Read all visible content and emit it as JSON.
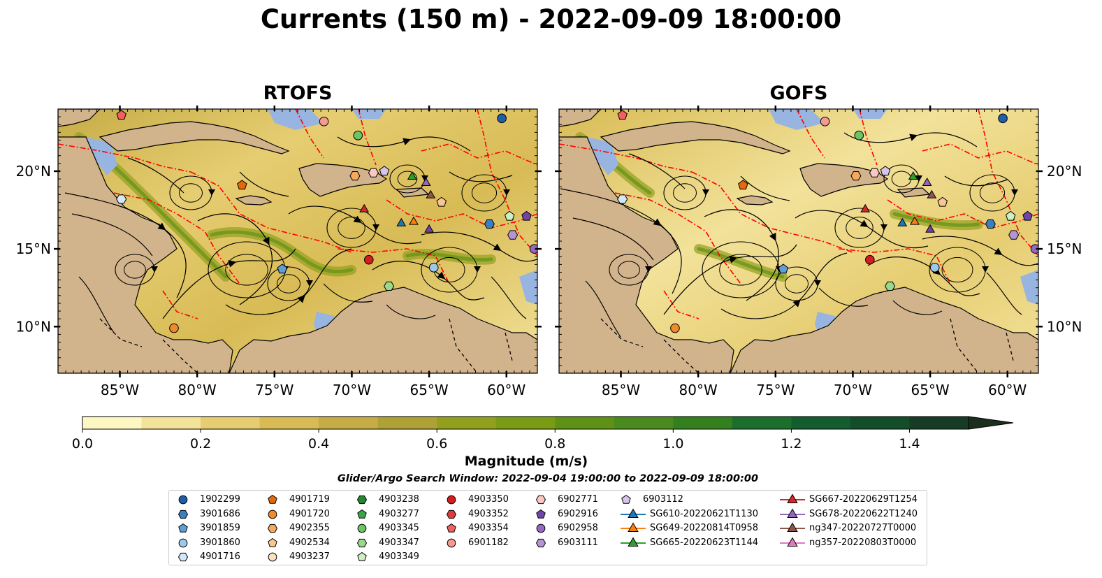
{
  "title": "Currents (150 m) - 2022-09-09 18:00:00",
  "panels": [
    {
      "title": "RTOFS"
    },
    {
      "title": "GOFS"
    }
  ],
  "x_ticks": [
    "85°W",
    "80°W",
    "75°W",
    "70°W",
    "65°W",
    "60°W"
  ],
  "y_ticks": [
    "20°N",
    "15°N",
    "10°N"
  ],
  "map_extent": {
    "lon": [
      -89,
      -58
    ],
    "lat": [
      7,
      24
    ]
  },
  "colorbar": {
    "label": "Magnitude (m/s)",
    "ticks": [
      "0.0",
      "0.2",
      "0.4",
      "0.6",
      "0.8",
      "1.0",
      "1.2",
      "1.4"
    ],
    "range": [
      0,
      1.5
    ],
    "extend": "max",
    "colors": [
      "#fdf7c3",
      "#f2e29a",
      "#e6cd72",
      "#d8bb55",
      "#c6ac45",
      "#aea236",
      "#93a01e",
      "#799c14",
      "#5f9117",
      "#4a8a1e",
      "#34801e",
      "#1c6e2c",
      "#145d2e",
      "#134d2a",
      "#173c26",
      "#1c2e1e"
    ]
  },
  "colors": {
    "land": "#d2b48c",
    "shallow": "#98b4e0",
    "eez": "#ff0000"
  },
  "search_window": "Glider/Argo Search Window: 2022-09-04 19:00:00 to 2022-09-09 18:00:00",
  "legend": [
    {
      "label": "1902299",
      "marker": "circle",
      "color": "#1f5ea8"
    },
    {
      "label": "3901686",
      "marker": "hexagon",
      "color": "#3a7fc0"
    },
    {
      "label": "3901859",
      "marker": "pentagon",
      "color": "#5f9fd6"
    },
    {
      "label": "3901860",
      "marker": "circle",
      "color": "#9cc8ea"
    },
    {
      "label": "4901716",
      "marker": "hexagon",
      "color": "#d4e8f8"
    },
    {
      "label": "4901719",
      "marker": "pentagon",
      "color": "#e4680c"
    },
    {
      "label": "4901720",
      "marker": "circle",
      "color": "#f08a2e"
    },
    {
      "label": "4902355",
      "marker": "hexagon",
      "color": "#f6a85c"
    },
    {
      "label": "4902534",
      "marker": "pentagon",
      "color": "#f8c690"
    },
    {
      "label": "4903237",
      "marker": "circle",
      "color": "#fde0c0"
    },
    {
      "label": "4903238",
      "marker": "hexagon",
      "color": "#22862e"
    },
    {
      "label": "4903277",
      "marker": "pentagon",
      "color": "#3aa548"
    },
    {
      "label": "4903345",
      "marker": "circle",
      "color": "#6cc464"
    },
    {
      "label": "4903347",
      "marker": "hexagon",
      "color": "#9ad88c"
    },
    {
      "label": "4903349",
      "marker": "pentagon",
      "color": "#d0eec4"
    },
    {
      "label": "4903350",
      "marker": "circle",
      "color": "#d21e1e"
    },
    {
      "label": "4903352",
      "marker": "hexagon",
      "color": "#e23a3a"
    },
    {
      "label": "4903354",
      "marker": "pentagon",
      "color": "#f06060"
    },
    {
      "label": "6901182",
      "marker": "circle",
      "color": "#f49a90"
    },
    {
      "label": "6902771",
      "marker": "hexagon",
      "color": "#f8c8c4"
    },
    {
      "label": "6902916",
      "marker": "pentagon",
      "color": "#7044a8"
    },
    {
      "label": "6902958",
      "marker": "circle",
      "color": "#9568c4"
    },
    {
      "label": "6903111",
      "marker": "hexagon",
      "color": "#b594d4"
    },
    {
      "label": "6903112",
      "marker": "pentagon",
      "color": "#d6c4ea"
    },
    {
      "label": "SG610-20220621T1130",
      "marker": "triangle",
      "color": "#1f77b4"
    },
    {
      "label": "SG649-20220814T0958",
      "marker": "triangle",
      "color": "#ff7f0e"
    },
    {
      "label": "SG665-20220623T1144",
      "marker": "triangle",
      "color": "#2ca02c"
    },
    {
      "label": "SG667-20220629T1254",
      "marker": "triangle",
      "color": "#d62728"
    },
    {
      "label": "SG678-20220622T1240",
      "marker": "triangle",
      "color": "#9467bd"
    },
    {
      "label": "ng347-20220727T0000",
      "marker": "triangle",
      "color": "#8c564b"
    },
    {
      "label": "ng357-20220803T0000",
      "marker": "triangle",
      "color": "#e377c2"
    }
  ],
  "floats": [
    {
      "marker": "circle",
      "color": "#1f5ea8",
      "lon": -60.3,
      "lat": 23.4
    },
    {
      "marker": "circle",
      "color": "#f49a90",
      "lon": -71.8,
      "lat": 23.2
    },
    {
      "marker": "circle",
      "color": "#6cc464",
      "lon": -69.6,
      "lat": 22.3
    },
    {
      "marker": "pentagon",
      "color": "#f06060",
      "lon": -84.9,
      "lat": 23.6
    },
    {
      "marker": "pentagon",
      "color": "#e4680c",
      "lon": -77.1,
      "lat": 19.1
    },
    {
      "marker": "hexagon",
      "color": "#d4e8f8",
      "lon": -84.9,
      "lat": 18.2
    },
    {
      "marker": "hexagon",
      "color": "#f6a85c",
      "lon": -69.8,
      "lat": 19.7
    },
    {
      "marker": "hexagon",
      "color": "#f8c8c4",
      "lon": -68.6,
      "lat": 19.9
    },
    {
      "marker": "pentagon",
      "color": "#d6c4ea",
      "lon": -67.9,
      "lat": 20.0
    },
    {
      "marker": "triangle",
      "color": "#2ca02c",
      "lon": -66.1,
      "lat": 19.7
    },
    {
      "marker": "triangle",
      "color": "#9467bd",
      "lon": -65.2,
      "lat": 19.3
    },
    {
      "marker": "triangle",
      "color": "#8c564b",
      "lon": -64.9,
      "lat": 18.5
    },
    {
      "marker": "pentagon",
      "color": "#f8c690",
      "lon": -64.2,
      "lat": 18.0
    },
    {
      "marker": "triangle",
      "color": "#d62728",
      "lon": -69.2,
      "lat": 17.6
    },
    {
      "marker": "triangle",
      "color": "#1f77b4",
      "lon": -66.8,
      "lat": 16.7
    },
    {
      "marker": "triangle",
      "color": "#ff7f0e",
      "lon": -66.0,
      "lat": 16.8
    },
    {
      "marker": "triangle",
      "color": "#7044a8",
      "lon": -65.0,
      "lat": 16.3
    },
    {
      "marker": "hexagon",
      "color": "#3a7fc0",
      "lon": -61.1,
      "lat": 16.6
    },
    {
      "marker": "pentagon",
      "color": "#d0eec4",
      "lon": -59.8,
      "lat": 17.1
    },
    {
      "marker": "pentagon",
      "color": "#7044a8",
      "lon": -58.7,
      "lat": 17.1
    },
    {
      "marker": "hexagon",
      "color": "#b594d4",
      "lon": -59.6,
      "lat": 15.9
    },
    {
      "marker": "circle",
      "color": "#9568c4",
      "lon": -58.2,
      "lat": 15.0
    },
    {
      "marker": "circle",
      "color": "#d21e1e",
      "lon": -68.9,
      "lat": 14.3
    },
    {
      "marker": "circle",
      "color": "#9cc8ea",
      "lon": -64.7,
      "lat": 13.8
    },
    {
      "marker": "pentagon",
      "color": "#5f9fd6",
      "lon": -74.5,
      "lat": 13.7
    },
    {
      "marker": "hexagon",
      "color": "#9ad88c",
      "lon": -67.6,
      "lat": 12.6
    },
    {
      "marker": "circle",
      "color": "#f08a2e",
      "lon": -81.5,
      "lat": 9.9
    }
  ]
}
